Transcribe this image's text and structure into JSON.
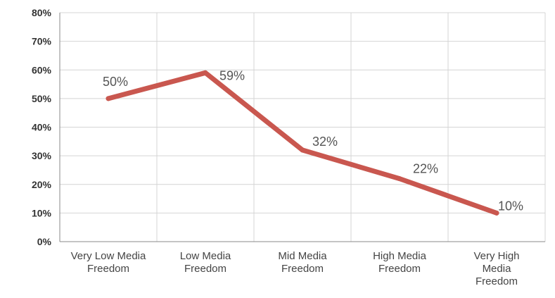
{
  "chart_data": {
    "type": "line",
    "categories": [
      "Very Low Media Freedom",
      "Low Media Freedom",
      "Mid Media Freedom",
      "High Media Freedom",
      "Very High Media Freedom"
    ],
    "category_lines": [
      [
        "Very Low Media",
        "Freedom"
      ],
      [
        "Low Media",
        "Freedom"
      ],
      [
        "Mid Media",
        "Freedom"
      ],
      [
        "High Media",
        "Freedom"
      ],
      [
        "Very High",
        "Media",
        "Freedom"
      ]
    ],
    "series": [
      {
        "values": [
          50,
          59,
          32,
          22,
          10
        ],
        "color": "#c9574f"
      }
    ],
    "data_labels": [
      "50%",
      "59%",
      "32%",
      "22%",
      "10%"
    ],
    "y_ticks": [
      0,
      10,
      20,
      30,
      40,
      50,
      60,
      70,
      80
    ],
    "y_tick_labels": [
      "0%",
      "10%",
      "20%",
      "30%",
      "40%",
      "50%",
      "60%",
      "70%",
      "80%"
    ],
    "ylim": [
      0,
      80
    ],
    "title": "",
    "xlabel": "",
    "ylabel": "",
    "grid": true,
    "legend": "none"
  }
}
